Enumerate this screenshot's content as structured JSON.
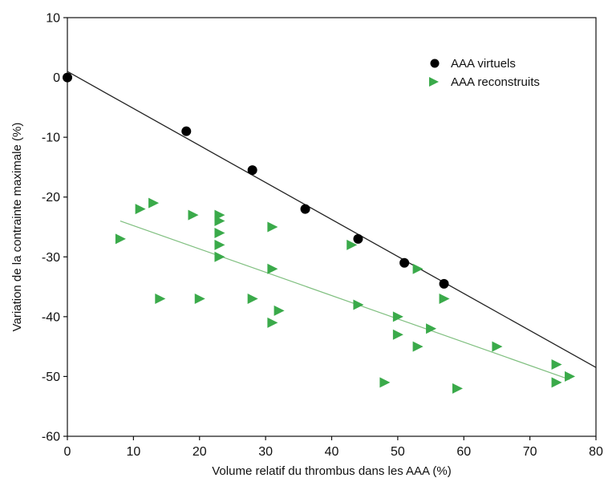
{
  "chart_data": {
    "type": "scatter",
    "xlabel": "Volume relatif du thrombus dans les AAA (%)",
    "ylabel": "Variation de la contrainte maximale (%)",
    "xlim": [
      0,
      80
    ],
    "ylim": [
      -60,
      10
    ],
    "xticks": [
      "0",
      "10",
      "20",
      "30",
      "40",
      "50",
      "60",
      "70",
      "80"
    ],
    "yticks": [
      "10",
      "0",
      "-10",
      "-20",
      "-30",
      "-40",
      "-50",
      "-60"
    ],
    "grid": false,
    "legend_position": "top-right",
    "series": [
      {
        "name": "AAA virtuels",
        "marker": "circle",
        "color": "#000000",
        "points": [
          [
            0,
            0
          ],
          [
            18,
            -9
          ],
          [
            28,
            -15.5
          ],
          [
            36,
            -22
          ],
          [
            44,
            -27
          ],
          [
            51,
            -31
          ],
          [
            57,
            -34.5
          ]
        ],
        "trendline": {
          "from": [
            0,
            1
          ],
          "to": [
            80,
            -48.5
          ],
          "color": "#222222"
        }
      },
      {
        "name": "AAA reconstruits",
        "marker": "triangle-right",
        "color": "#3aaa4a",
        "points": [
          [
            8,
            -27
          ],
          [
            11,
            -22
          ],
          [
            13,
            -21
          ],
          [
            14,
            -37
          ],
          [
            19,
            -23
          ],
          [
            20,
            -37
          ],
          [
            23,
            -23
          ],
          [
            23,
            -24
          ],
          [
            23,
            -26
          ],
          [
            23,
            -28
          ],
          [
            23,
            -30
          ],
          [
            28,
            -37
          ],
          [
            31,
            -25
          ],
          [
            31,
            -32
          ],
          [
            31,
            -41
          ],
          [
            32,
            -39
          ],
          [
            43,
            -28
          ],
          [
            44,
            -38
          ],
          [
            48,
            -51
          ],
          [
            50,
            -40
          ],
          [
            50,
            -43
          ],
          [
            53,
            -32
          ],
          [
            53,
            -45
          ],
          [
            55,
            -42
          ],
          [
            57,
            -37
          ],
          [
            59,
            -52
          ],
          [
            65,
            -45
          ],
          [
            74,
            -48
          ],
          [
            74,
            -51
          ],
          [
            76,
            -50
          ]
        ],
        "trendline": {
          "from": [
            8,
            -24
          ],
          "to": [
            76,
            -50.5
          ],
          "color": "#7fbf7f"
        }
      }
    ]
  }
}
